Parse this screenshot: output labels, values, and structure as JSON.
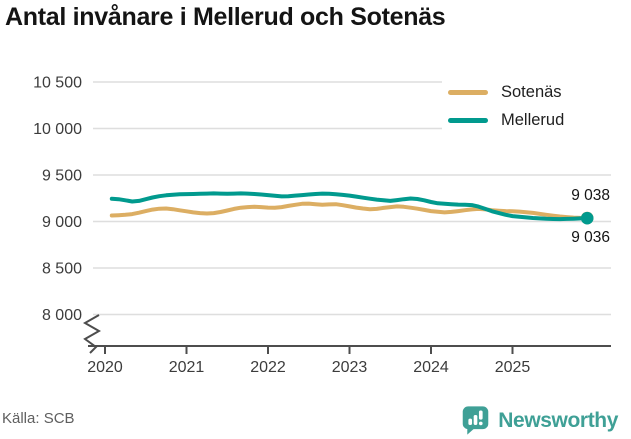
{
  "header": {
    "title": "Antal invånare i Mellerud och Sotenäs"
  },
  "chart_data": {
    "type": "line",
    "title": "Antal invånare i Mellerud och Sotenäs",
    "frequency": "monthly",
    "start_month": "2020-01",
    "end_month": "2025-11",
    "x_tick_labels": [
      "2020",
      "2021",
      "2022",
      "2023",
      "2024",
      "2025"
    ],
    "y_ticks": [
      10500,
      10000,
      9500,
      9000,
      8500,
      8000
    ],
    "y_tick_labels": [
      "10 500",
      "10 000",
      "9 500",
      "9 000",
      "8 500",
      "8 000"
    ],
    "ylim": [
      8000,
      10500
    ],
    "y_axis_break": true,
    "grid": "horizontal",
    "legend_position": "top-right",
    "series": [
      {
        "name": "Sotenäs",
        "color": "#dcae63",
        "end_label": "9 038",
        "end_dot": true,
        "values": [
          9065,
          9068,
          9072,
          9080,
          9095,
          9112,
          9128,
          9138,
          9140,
          9132,
          9120,
          9110,
          9098,
          9090,
          9086,
          9090,
          9102,
          9118,
          9135,
          9148,
          9155,
          9158,
          9155,
          9150,
          9148,
          9155,
          9168,
          9180,
          9190,
          9192,
          9186,
          9180,
          9184,
          9186,
          9175,
          9162,
          9150,
          9140,
          9132,
          9136,
          9146,
          9155,
          9162,
          9158,
          9148,
          9138,
          9125,
          9112,
          9104,
          9098,
          9103,
          9112,
          9122,
          9130,
          9135,
          9130,
          9122,
          9116,
          9112,
          9110,
          9106,
          9100,
          9092,
          9082,
          9072,
          9062,
          9054,
          9047,
          9042,
          9039,
          9038
        ]
      },
      {
        "name": "Mellerud",
        "color": "#019a8e",
        "end_label": "9 036",
        "end_dot": true,
        "values": [
          9245,
          9240,
          9228,
          9215,
          9222,
          9240,
          9258,
          9272,
          9282,
          9288,
          9292,
          9295,
          9296,
          9298,
          9300,
          9302,
          9300,
          9298,
          9300,
          9302,
          9300,
          9296,
          9290,
          9284,
          9276,
          9270,
          9272,
          9278,
          9284,
          9290,
          9296,
          9300,
          9298,
          9292,
          9286,
          9278,
          9268,
          9256,
          9245,
          9236,
          9228,
          9222,
          9230,
          9240,
          9247,
          9242,
          9228,
          9210,
          9196,
          9190,
          9186,
          9182,
          9180,
          9176,
          9160,
          9135,
          9110,
          9090,
          9072,
          9058,
          9050,
          9044,
          9038,
          9033,
          9029,
          9027,
          9026,
          9028,
          9030,
          9033,
          9036
        ]
      }
    ]
  },
  "footer": {
    "source": "Källa: SCB",
    "brand": "Newsworthy"
  },
  "colors": {
    "sotenas_line": "#dcae63",
    "mellerud_line": "#019a8e",
    "grid": "#dedede",
    "axis_line": "#4d4d4d",
    "axis_text": "#3c3c3c",
    "title_text": "#141414",
    "end_label_text": "#141414",
    "source_text": "#5f5f5f",
    "logo_teal": "#3fa096",
    "background": "#ffffff"
  }
}
